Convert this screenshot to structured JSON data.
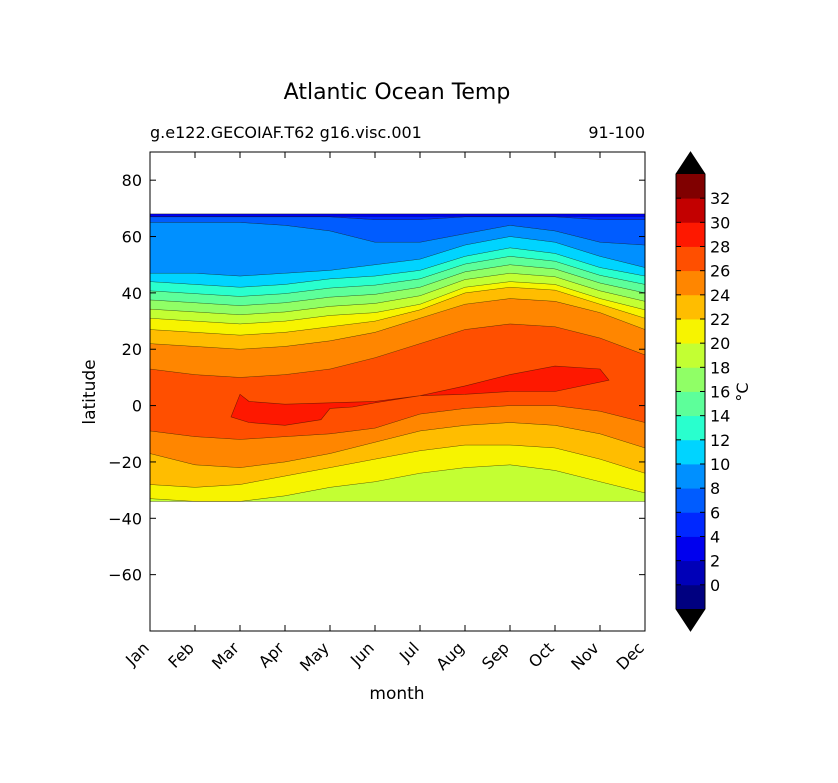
{
  "chart_data": {
    "type": "contourf",
    "title": "Atlantic Ocean Temp",
    "subtitle_left": "g.e122.GECOIAF.T62 g16.visc.001",
    "subtitle_right": "91-100",
    "xlabel": "month",
    "ylabel": "latitude",
    "x_categories": [
      "Jan",
      "Feb",
      "Mar",
      "Apr",
      "May",
      "Jun",
      "Jul",
      "Aug",
      "Sep",
      "Oct",
      "Nov",
      "Dec"
    ],
    "ylim": [
      -80,
      90
    ],
    "yticks": [
      80,
      60,
      40,
      20,
      0,
      -20,
      -40,
      -60
    ],
    "ytick_labels": [
      "80",
      "60",
      "40",
      "20",
      "0",
      "−20",
      "−40",
      "−60"
    ],
    "lat_extent": [
      -34,
      68
    ],
    "colorbar": {
      "label": "°C",
      "levels": [
        -2,
        0,
        2,
        4,
        6,
        8,
        10,
        12,
        14,
        16,
        18,
        20,
        22,
        24,
        26,
        28,
        30,
        32,
        34
      ],
      "tick_values": [
        0,
        2,
        4,
        6,
        8,
        10,
        12,
        14,
        16,
        18,
        20,
        22,
        24,
        26,
        28,
        30,
        32
      ],
      "tick_labels": [
        "0",
        "2",
        "4",
        "6",
        "8",
        "10",
        "12",
        "14",
        "16",
        "18",
        "20",
        "22",
        "24",
        "26",
        "28",
        "30",
        "32"
      ],
      "colors": [
        "#000080",
        "#0000b8",
        "#0000ee",
        "#0028ff",
        "#005cff",
        "#0090ff",
        "#00d4ff",
        "#29ffce",
        "#5dff9a",
        "#90ff66",
        "#c3ff33",
        "#f7f400",
        "#ffbd00",
        "#ff8600",
        "#ff4f00",
        "#fe1800",
        "#c30000",
        "#800000"
      ],
      "extend_color": "#000000"
    },
    "field_description": "Monthly climatology of Atlantic zonal-mean temperature (°C) vs latitude; values shown are approximate contour boundary latitudes read from the plot.",
    "contour_boundaries_south_hemisphere": {
      "26C": [
        -9,
        -11,
        -12,
        -11,
        -10,
        -8,
        -3,
        -1,
        0,
        0,
        -2,
        -6
      ],
      "24C": [
        -17,
        -21,
        -22,
        -20,
        -17,
        -13,
        -9,
        -7,
        -6,
        -7,
        -10,
        -15
      ],
      "22C": [
        -28,
        -29,
        -28,
        -25,
        -22,
        -19,
        -16,
        -14,
        -14,
        -15,
        -19,
        -24
      ],
      "20C": [
        -33,
        -34,
        -34,
        -32,
        -29,
        -27,
        -24,
        -22,
        -21,
        -23,
        -27,
        -31
      ]
    },
    "contour_boundaries_north_hemisphere": {
      "26C": [
        13,
        11,
        10,
        11,
        13,
        17,
        22,
        27,
        29,
        28,
        24,
        18
      ],
      "24C": [
        22,
        21,
        20,
        21,
        23,
        26,
        31,
        36,
        38,
        37,
        33,
        27
      ],
      "22C": [
        27,
        26,
        25,
        26,
        28,
        30,
        34,
        40,
        42,
        41,
        36,
        31
      ],
      "20C": [
        31,
        30,
        29,
        30,
        32,
        33,
        36,
        42,
        44,
        43,
        38,
        34
      ],
      "12C": [
        44,
        43,
        42,
        43,
        45,
        46,
        48,
        53,
        56,
        54,
        49,
        46
      ],
      "10C": [
        47,
        47,
        46,
        47,
        48,
        50,
        52,
        57,
        60,
        58,
        53,
        49
      ],
      "8C": [
        65,
        65,
        65,
        64,
        62,
        58,
        58,
        61,
        64,
        62,
        58,
        57
      ],
      "6C": [
        67,
        67,
        67,
        67,
        67,
        66,
        66,
        67,
        67,
        67,
        66,
        66
      ]
    },
    "warm_core_28C": "28–30°C region spanning roughly 0–5°S in Mar–May and 5–15°N in Jul–Nov"
  }
}
